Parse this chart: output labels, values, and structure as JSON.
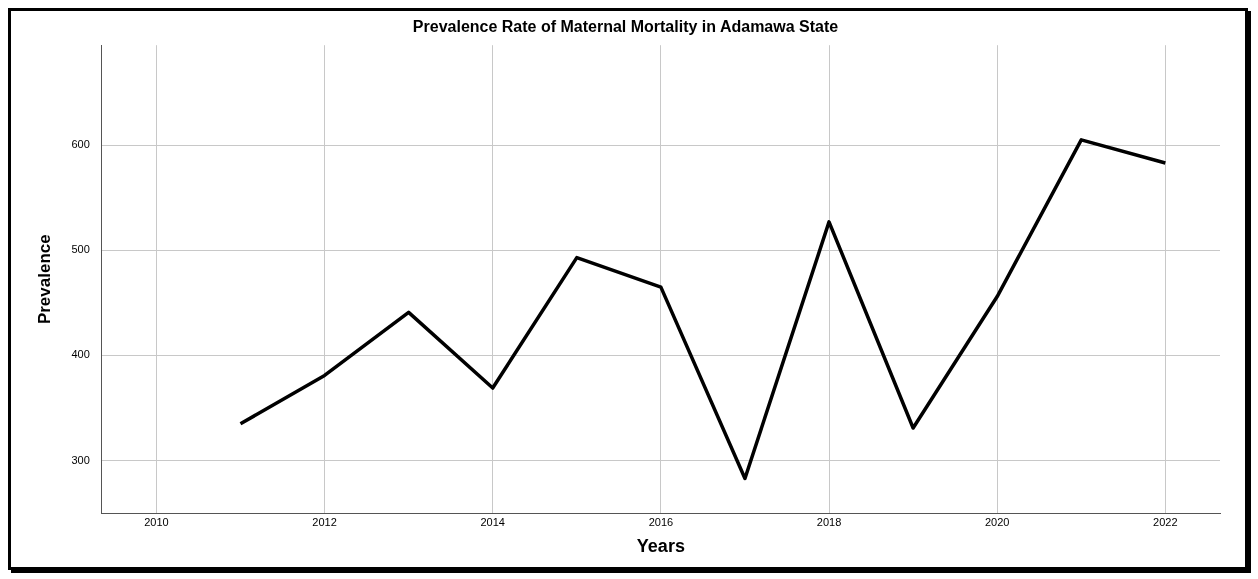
{
  "chart_data": {
    "type": "line",
    "title": "Prevalence Rate of Maternal Mortality in Adamawa State",
    "xlabel": "Years",
    "ylabel": "Prevalence",
    "x": [
      2011,
      2012,
      2013,
      2014,
      2015,
      2016,
      2017,
      2018,
      2019,
      2020,
      2021,
      2022
    ],
    "series": [
      {
        "color": "#000000",
        "values": [
          335,
          381,
          441,
          369,
          493,
          465,
          283,
          527,
          331,
          456,
          605,
          583
        ]
      }
    ],
    "xlim": [
      2009.35,
      2022.65
    ],
    "xticks": [
      2010,
      2012,
      2014,
      2016,
      2018,
      2020,
      2022
    ],
    "ylim": [
      250,
      695
    ],
    "yticks": [
      300,
      400,
      500,
      600
    ],
    "grid": true,
    "legend": false,
    "marker": "none",
    "line_style": "solid"
  }
}
